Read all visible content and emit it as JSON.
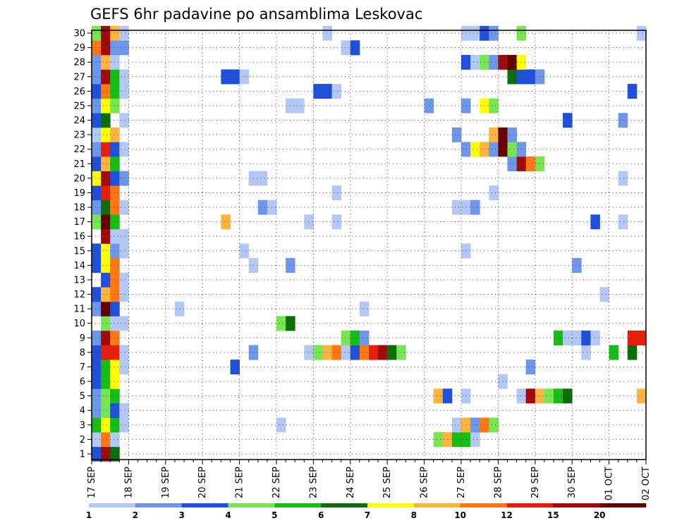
{
  "chart_data": {
    "type": "heatmap",
    "title": "GEFS 6hr padavine po ansamblima Leskovac",
    "xlabel": "",
    "ylabel": "",
    "x_tick_labels": [
      "17 SEP",
      "18 SEP",
      "19 SEP",
      "20 SEP",
      "21 SEP",
      "22 SEP",
      "23 SEP",
      "24 SEP",
      "25 SEP",
      "26 SEP",
      "27 SEP",
      "28 SEP",
      "29 SEP",
      "30 SEP",
      "01 OCT",
      "02 OCT"
    ],
    "y_tick_labels": [
      "1",
      "2",
      "3",
      "4",
      "5",
      "6",
      "7",
      "8",
      "9",
      "10",
      "11",
      "12",
      "13",
      "14",
      "15",
      "16",
      "17",
      "18",
      "19",
      "20",
      "21",
      "22",
      "23",
      "24",
      "25",
      "26",
      "27",
      "28",
      "29",
      "30"
    ],
    "grid": true,
    "x_unit": "6h step",
    "colorbar": {
      "labels": [
        "1",
        "2",
        "3",
        "4",
        "5",
        "6",
        "7",
        "8",
        "10",
        "12",
        "15",
        "20"
      ],
      "colors": [
        "#b4c8f5",
        "#6e96eb",
        "#1e50dc",
        "#78e650",
        "#14be14",
        "#0a6e0a",
        "#ffff00",
        "#ffb43c",
        "#ff7814",
        "#e61e0a",
        "#a00a0a",
        "#640000"
      ]
    },
    "members": [
      {
        "member": 1,
        "cells": [
          [
            1,
            3
          ],
          [
            2,
            11
          ],
          [
            3,
            6
          ]
        ]
      },
      {
        "member": 2,
        "cells": [
          [
            1,
            1
          ],
          [
            2,
            9
          ],
          [
            3,
            1
          ],
          [
            38,
            4
          ],
          [
            39,
            8
          ],
          [
            40,
            5
          ],
          [
            41,
            5
          ],
          [
            42,
            1
          ]
        ]
      },
      {
        "member": 3,
        "cells": [
          [
            1,
            5
          ],
          [
            2,
            7
          ],
          [
            3,
            5
          ],
          [
            4,
            1
          ],
          [
            21,
            1
          ],
          [
            40,
            1
          ],
          [
            41,
            8
          ],
          [
            42,
            2
          ],
          [
            43,
            9
          ],
          [
            44,
            4
          ]
        ]
      },
      {
        "member": 4,
        "cells": [
          [
            1,
            2
          ],
          [
            2,
            4
          ],
          [
            3,
            3
          ],
          [
            4,
            1
          ]
        ]
      },
      {
        "member": 5,
        "cells": [
          [
            1,
            2
          ],
          [
            2,
            4
          ],
          [
            3,
            5
          ],
          [
            38,
            8
          ],
          [
            39,
            3
          ],
          [
            41,
            1
          ],
          [
            47,
            1
          ],
          [
            48,
            11
          ],
          [
            49,
            8
          ],
          [
            50,
            4
          ],
          [
            51,
            5
          ],
          [
            52,
            6
          ],
          [
            60,
            8
          ]
        ]
      },
      {
        "member": 6,
        "cells": [
          [
            1,
            3
          ],
          [
            2,
            5
          ],
          [
            3,
            7
          ],
          [
            45,
            1
          ]
        ]
      },
      {
        "member": 7,
        "cells": [
          [
            1,
            3
          ],
          [
            2,
            5
          ],
          [
            3,
            7
          ],
          [
            4,
            1
          ],
          [
            16,
            3
          ],
          [
            48,
            2
          ]
        ]
      },
      {
        "member": 8,
        "cells": [
          [
            1,
            3
          ],
          [
            2,
            10
          ],
          [
            3,
            10
          ],
          [
            4,
            1
          ],
          [
            18,
            2
          ],
          [
            24,
            1
          ],
          [
            25,
            4
          ],
          [
            26,
            8
          ],
          [
            27,
            9
          ],
          [
            28,
            1
          ],
          [
            29,
            3
          ],
          [
            30,
            9
          ],
          [
            31,
            10
          ],
          [
            32,
            11
          ],
          [
            33,
            6
          ],
          [
            34,
            4
          ],
          [
            54,
            1
          ],
          [
            57,
            5
          ],
          [
            59,
            6
          ]
        ]
      },
      {
        "member": 9,
        "cells": [
          [
            1,
            2
          ],
          [
            2,
            11
          ],
          [
            3,
            9
          ],
          [
            28,
            4
          ],
          [
            29,
            5
          ],
          [
            30,
            2
          ],
          [
            51,
            5
          ],
          [
            52,
            1
          ],
          [
            53,
            1
          ],
          [
            54,
            3
          ],
          [
            55,
            1
          ],
          [
            59,
            10
          ],
          [
            60,
            10
          ]
        ]
      },
      {
        "member": 10,
        "cells": [
          [
            2,
            4
          ],
          [
            3,
            1
          ],
          [
            4,
            1
          ],
          [
            21,
            4
          ],
          [
            22,
            6
          ]
        ]
      },
      {
        "member": 11,
        "cells": [
          [
            1,
            2
          ],
          [
            2,
            12
          ],
          [
            3,
            3
          ],
          [
            10,
            1
          ],
          [
            30,
            1
          ]
        ]
      },
      {
        "member": 12,
        "cells": [
          [
            1,
            3
          ],
          [
            2,
            8
          ],
          [
            3,
            9
          ],
          [
            4,
            1
          ],
          [
            56,
            1
          ]
        ]
      },
      {
        "member": 13,
        "cells": [
          [
            2,
            3
          ],
          [
            3,
            9
          ],
          [
            4,
            1
          ]
        ]
      },
      {
        "member": 14,
        "cells": [
          [
            1,
            3
          ],
          [
            2,
            7
          ],
          [
            3,
            9
          ],
          [
            18,
            1
          ],
          [
            22,
            2
          ],
          [
            53,
            2
          ]
        ]
      },
      {
        "member": 15,
        "cells": [
          [
            1,
            3
          ],
          [
            2,
            7
          ],
          [
            3,
            2
          ],
          [
            4,
            1
          ],
          [
            17,
            1
          ],
          [
            41,
            1
          ]
        ]
      },
      {
        "member": 16,
        "cells": [
          [
            2,
            11
          ],
          [
            3,
            1
          ],
          [
            4,
            1
          ]
        ]
      },
      {
        "member": 17,
        "cells": [
          [
            1,
            4
          ],
          [
            2,
            12
          ],
          [
            3,
            5
          ],
          [
            15,
            8
          ],
          [
            24,
            1
          ],
          [
            27,
            1
          ],
          [
            55,
            3
          ],
          [
            58,
            1
          ]
        ]
      },
      {
        "member": 18,
        "cells": [
          [
            1,
            2
          ],
          [
            2,
            6
          ],
          [
            3,
            9
          ],
          [
            4,
            1
          ],
          [
            19,
            2
          ],
          [
            20,
            1
          ],
          [
            40,
            1
          ],
          [
            41,
            1
          ],
          [
            42,
            2
          ]
        ]
      },
      {
        "member": 19,
        "cells": [
          [
            1,
            3
          ],
          [
            2,
            10
          ],
          [
            3,
            9
          ],
          [
            27,
            1
          ],
          [
            44,
            1
          ]
        ]
      },
      {
        "member": 20,
        "cells": [
          [
            1,
            7
          ],
          [
            2,
            11
          ],
          [
            3,
            3
          ],
          [
            4,
            2
          ],
          [
            18,
            1
          ],
          [
            19,
            1
          ],
          [
            58,
            1
          ]
        ]
      },
      {
        "member": 21,
        "cells": [
          [
            1,
            3
          ],
          [
            2,
            8
          ],
          [
            3,
            5
          ],
          [
            46,
            2
          ],
          [
            47,
            11
          ],
          [
            48,
            9
          ],
          [
            49,
            4
          ]
        ]
      },
      {
        "member": 22,
        "cells": [
          [
            1,
            2
          ],
          [
            2,
            10
          ],
          [
            3,
            3
          ],
          [
            4,
            1
          ],
          [
            41,
            2
          ],
          [
            42,
            7
          ],
          [
            43,
            8
          ],
          [
            44,
            2
          ],
          [
            45,
            12
          ],
          [
            46,
            4
          ],
          [
            47,
            2
          ]
        ]
      },
      {
        "member": 23,
        "cells": [
          [
            1,
            1
          ],
          [
            2,
            7
          ],
          [
            3,
            8
          ],
          [
            40,
            2
          ],
          [
            44,
            8
          ],
          [
            45,
            12
          ],
          [
            46,
            2
          ]
        ]
      },
      {
        "member": 24,
        "cells": [
          [
            1,
            3
          ],
          [
            2,
            6
          ],
          [
            4,
            1
          ],
          [
            52,
            3
          ],
          [
            58,
            2
          ]
        ]
      },
      {
        "member": 25,
        "cells": [
          [
            1,
            2
          ],
          [
            2,
            7
          ],
          [
            3,
            4
          ],
          [
            22,
            1
          ],
          [
            23,
            1
          ],
          [
            37,
            2
          ],
          [
            41,
            2
          ],
          [
            43,
            7
          ],
          [
            44,
            4
          ]
        ]
      },
      {
        "member": 26,
        "cells": [
          [
            1,
            3
          ],
          [
            2,
            9
          ],
          [
            3,
            5
          ],
          [
            4,
            1
          ],
          [
            25,
            3
          ],
          [
            26,
            3
          ],
          [
            27,
            1
          ],
          [
            59,
            3
          ]
        ]
      },
      {
        "member": 27,
        "cells": [
          [
            1,
            2
          ],
          [
            2,
            11
          ],
          [
            3,
            5
          ],
          [
            4,
            1
          ],
          [
            15,
            3
          ],
          [
            16,
            3
          ],
          [
            17,
            1
          ],
          [
            46,
            6
          ],
          [
            47,
            3
          ],
          [
            48,
            3
          ],
          [
            49,
            2
          ]
        ]
      },
      {
        "member": 28,
        "cells": [
          [
            1,
            2
          ],
          [
            2,
            8
          ],
          [
            3,
            1
          ],
          [
            41,
            3
          ],
          [
            42,
            1
          ],
          [
            43,
            4
          ],
          [
            44,
            2
          ],
          [
            45,
            11
          ],
          [
            46,
            12
          ],
          [
            47,
            7
          ]
        ]
      },
      {
        "member": 29,
        "cells": [
          [
            1,
            9
          ],
          [
            2,
            11
          ],
          [
            3,
            2
          ],
          [
            4,
            2
          ],
          [
            28,
            1
          ],
          [
            29,
            3
          ]
        ]
      },
      {
        "member": 30,
        "cells": [
          [
            1,
            4
          ],
          [
            2,
            11
          ],
          [
            3,
            8
          ],
          [
            4,
            1
          ],
          [
            26,
            1
          ],
          [
            41,
            1
          ],
          [
            42,
            1
          ],
          [
            43,
            3
          ],
          [
            44,
            2
          ],
          [
            47,
            4
          ],
          [
            60,
            1
          ]
        ]
      }
    ]
  }
}
